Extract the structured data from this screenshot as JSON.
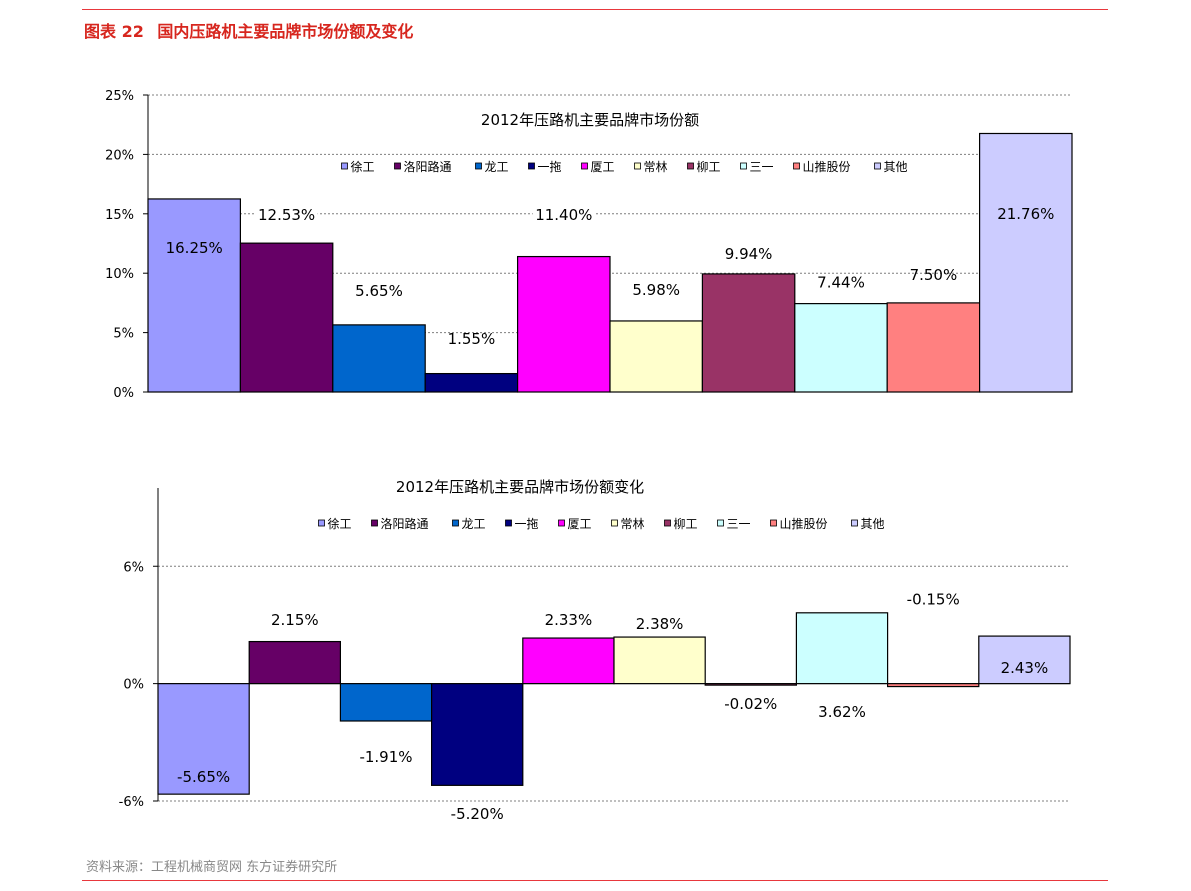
{
  "header": {
    "figure_label": "图表 22",
    "figure_title": "国内压路机主要品牌市场份额及变化"
  },
  "footer": {
    "source": "资料来源：工程机械商贸网  东方证券研究所"
  },
  "colors": {
    "accent_red": "#e8373c"
  },
  "chart_data": [
    {
      "type": "bar",
      "title": "2012年压路机主要品牌市场份额",
      "categories": [
        "徐工",
        "洛阳路通",
        "龙工",
        "一拖",
        "厦工",
        "常林",
        "柳工",
        "三一",
        "山推股份",
        "其他"
      ],
      "values": [
        16.25,
        12.53,
        5.65,
        1.55,
        11.4,
        5.98,
        9.94,
        7.44,
        7.5,
        21.76
      ],
      "value_labels": [
        "16.25%",
        "12.53%",
        "5.65%",
        "1.55%",
        "11.40%",
        "5.98%",
        "9.94%",
        "7.44%",
        "7.50%",
        "21.76%"
      ],
      "colors": [
        "#9999ff",
        "#660066",
        "#0066cc",
        "#000080",
        "#ff00ff",
        "#ffffcc",
        "#993366",
        "#ccffff",
        "#ff8080",
        "#ccccff"
      ],
      "ylim": [
        0,
        25
      ],
      "yticks": [
        "0%",
        "5%",
        "10%",
        "15%",
        "20%",
        "25%"
      ],
      "ytick_values": [
        0,
        5,
        10,
        15,
        20,
        25
      ],
      "grid": true,
      "legend": "top"
    },
    {
      "type": "bar",
      "title": "2012年压路机主要品牌市场份额变化",
      "categories": [
        "徐工",
        "洛阳路通",
        "龙工",
        "一拖",
        "厦工",
        "常林",
        "柳工",
        "三一",
        "山推股份",
        "其他"
      ],
      "values": [
        -5.65,
        2.15,
        -1.91,
        -5.2,
        2.33,
        2.38,
        -0.02,
        3.62,
        -0.15,
        2.43
      ],
      "value_labels": [
        "-5.65%",
        "2.15%",
        "-1.91%",
        "-5.20%",
        "2.33%",
        "2.38%",
        "-0.02%",
        "3.62%",
        "-0.15%",
        "2.43%"
      ],
      "colors": [
        "#9999ff",
        "#660066",
        "#0066cc",
        "#000080",
        "#ff00ff",
        "#ffffcc",
        "#993366",
        "#ccffff",
        "#ff8080",
        "#ccccff"
      ],
      "ylim": [
        -6,
        10
      ],
      "yticks": [
        "-6%",
        "0%",
        "6%"
      ],
      "ytick_values": [
        -6,
        0,
        6
      ],
      "grid": true,
      "legend": "top"
    }
  ]
}
